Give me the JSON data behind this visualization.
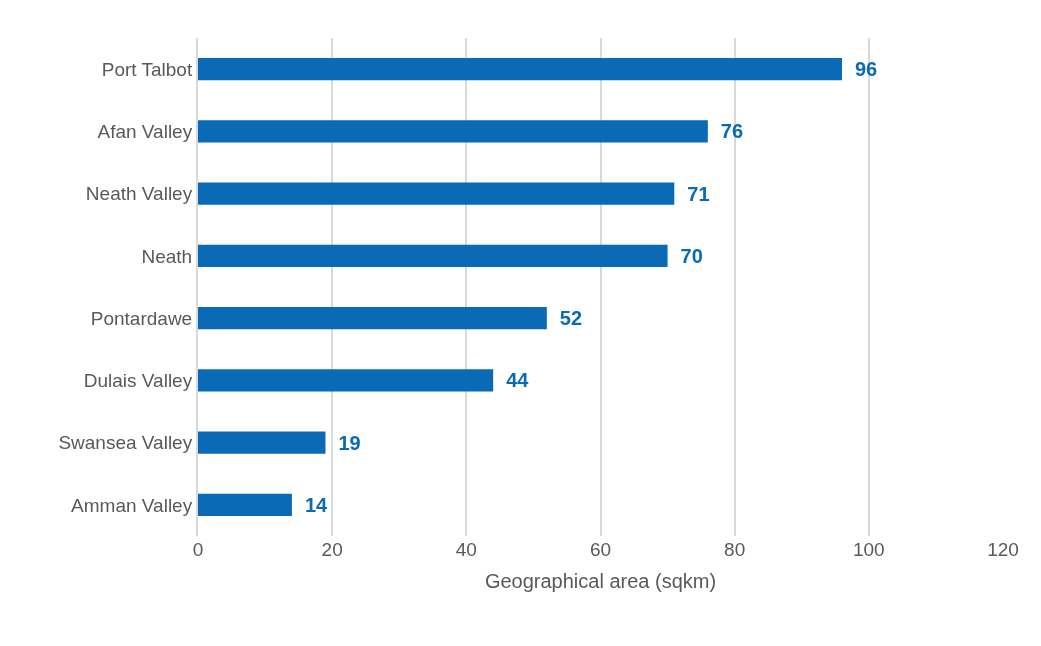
{
  "chart_data": {
    "type": "bar",
    "orientation": "horizontal",
    "xlabel": "Geographical area (sqkm)",
    "categories": [
      "Port Talbot",
      "Afan Valley",
      "Neath Valley",
      "Neath",
      "Pontardawe",
      "Dulais Valley",
      "Swansea Valley",
      "Amman Valley"
    ],
    "values": [
      96,
      76,
      71,
      70,
      52,
      44,
      19,
      14
    ],
    "color": "#0a6ab6",
    "xlim": [
      0,
      120
    ],
    "xticks": [
      0,
      20,
      40,
      60,
      80,
      100,
      120
    ],
    "grid": "x",
    "data_labels": true
  }
}
